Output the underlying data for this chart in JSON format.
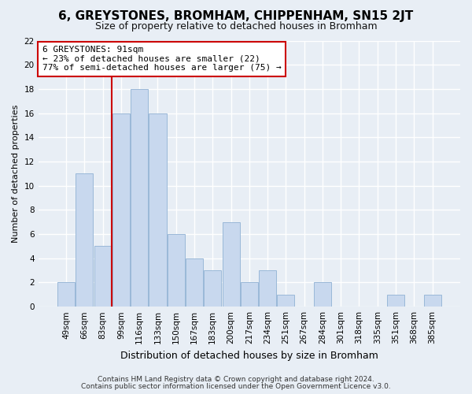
{
  "title": "6, GREYSTONES, BROMHAM, CHIPPENHAM, SN15 2JT",
  "subtitle": "Size of property relative to detached houses in Bromham",
  "xlabel": "Distribution of detached houses by size in Bromham",
  "ylabel": "Number of detached properties",
  "bar_color": "#c8d8ee",
  "bar_edge_color": "#9ab8d8",
  "categories": [
    "49sqm",
    "66sqm",
    "83sqm",
    "99sqm",
    "116sqm",
    "133sqm",
    "150sqm",
    "167sqm",
    "183sqm",
    "200sqm",
    "217sqm",
    "234sqm",
    "251sqm",
    "267sqm",
    "284sqm",
    "301sqm",
    "318sqm",
    "335sqm",
    "351sqm",
    "368sqm",
    "385sqm"
  ],
  "values": [
    2,
    11,
    5,
    16,
    18,
    16,
    6,
    4,
    3,
    7,
    2,
    3,
    1,
    0,
    2,
    0,
    0,
    0,
    1,
    0,
    1
  ],
  "ylim": [
    0,
    22
  ],
  "yticks": [
    0,
    2,
    4,
    6,
    8,
    10,
    12,
    14,
    16,
    18,
    20,
    22
  ],
  "vline_x_idx": 2.5,
  "vline_color": "#cc0000",
  "annotation_title": "6 GREYSTONES: 91sqm",
  "annotation_line1": "← 23% of detached houses are smaller (22)",
  "annotation_line2": "77% of semi-detached houses are larger (75) →",
  "annotation_box_color": "#ffffff",
  "annotation_box_edge": "#cc0000",
  "footer1": "Contains HM Land Registry data © Crown copyright and database right 2024.",
  "footer2": "Contains public sector information licensed under the Open Government Licence v3.0.",
  "background_color": "#e8eef5",
  "grid_color": "#ffffff",
  "title_fontsize": 11,
  "subtitle_fontsize": 9,
  "ylabel_fontsize": 8,
  "xlabel_fontsize": 9,
  "tick_fontsize": 7.5,
  "footer_fontsize": 6.5
}
